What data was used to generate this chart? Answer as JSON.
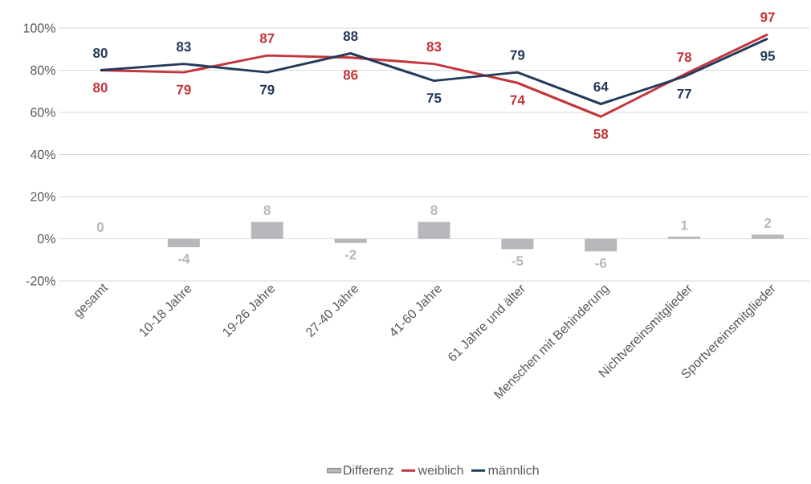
{
  "chart_data": {
    "type": "line",
    "categories": [
      "gesamt",
      "10-18 Jahre",
      "19-26 Jahre",
      "27-40 Jahre",
      "41-60 Jahre",
      "61 Jahre und älter",
      "Menschen mit Behinderung",
      "Nichtvereinsmitglieder",
      "Sportvereinsmitglieder"
    ],
    "series": [
      {
        "name": "Differenz",
        "type": "bar",
        "color": "#b8b8bc",
        "values": [
          0,
          -4,
          8,
          -2,
          8,
          -5,
          -6,
          1,
          2
        ]
      },
      {
        "name": "weiblich",
        "color": "#c4343a",
        "values": [
          80,
          79,
          87,
          86,
          83,
          74,
          58,
          78,
          97
        ]
      },
      {
        "name": "männlich",
        "color": "#243a5c",
        "values": [
          80,
          83,
          79,
          88,
          75,
          79,
          64,
          77,
          95
        ]
      }
    ],
    "ylim": [
      -20,
      100
    ],
    "yticks": [
      {
        "value": -20,
        "label": "-20%"
      },
      {
        "value": 0,
        "label": "0%"
      },
      {
        "value": 20,
        "label": "20%"
      },
      {
        "value": 40,
        "label": "40%"
      },
      {
        "value": 60,
        "label": "60%"
      },
      {
        "value": 80,
        "label": "80%"
      },
      {
        "value": 100,
        "label": "100%"
      }
    ],
    "grid": "y",
    "legend": "bottom",
    "data_labels": true,
    "marker": "none",
    "line_style": "solid"
  }
}
